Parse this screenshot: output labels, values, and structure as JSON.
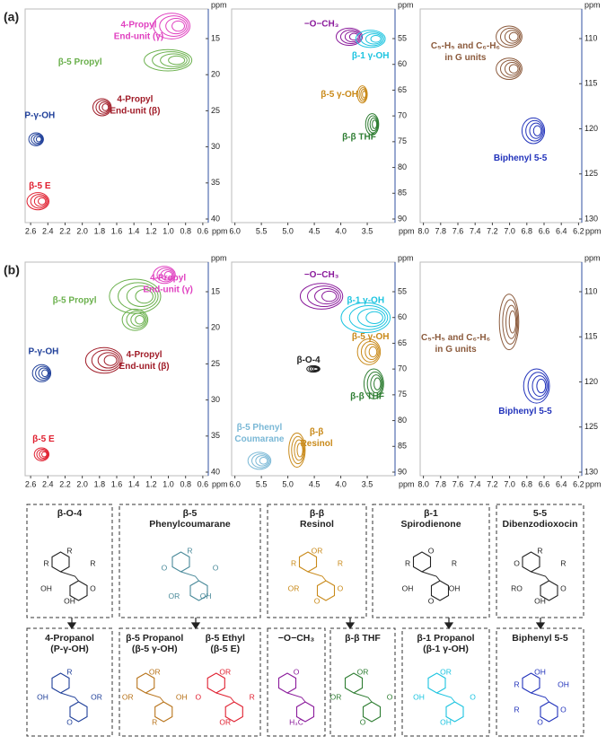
{
  "rows": [
    {
      "tag": "(a)",
      "spectra": [
        {
          "xticks": [
            "2.6",
            "2.4",
            "2.2",
            "2.0",
            "1.8",
            "1.6",
            "1.4",
            "1.2",
            "1.0",
            "0.8",
            "0.6"
          ],
          "yticks": [
            "15",
            "20",
            "25",
            "30",
            "35",
            "40"
          ],
          "xunit": "ppm",
          "yunit": "ppm",
          "labels": [
            [
              "4-Propyl",
              "End-unit (γ)"
            ],
            [
              "β-5 Propyl"
            ],
            [
              "4-Propyl",
              "End-unit (β)"
            ],
            [
              "P-γ-OH"
            ],
            [
              "β-5 E"
            ]
          ]
        },
        {
          "xticks": [
            "6.0",
            "5.5",
            "5.0",
            "4.5",
            "4.0",
            "3.5"
          ],
          "yticks": [
            "55",
            "60",
            "65",
            "70",
            "75",
            "80",
            "85",
            "90"
          ],
          "xunit": "ppm",
          "yunit": "ppm",
          "labels": [
            [
              "−O−CH₃"
            ],
            [
              "β-1 γ-OH"
            ],
            [
              "β-5 γ-OH"
            ],
            [
              "β-β THF"
            ]
          ]
        },
        {
          "xticks": [
            "8.0",
            "7.8",
            "7.6",
            "7.4",
            "7.2",
            "7.0",
            "6.8",
            "6.6",
            "6.4",
            "6.2"
          ],
          "yticks": [
            "110",
            "115",
            "120",
            "125",
            "130"
          ],
          "xunit": "ppm",
          "yunit": "ppm",
          "labels": [
            [
              "C₅-H₅ and C₆-H₆",
              "in G units"
            ],
            [
              "Biphenyl 5-5"
            ]
          ]
        }
      ]
    },
    {
      "tag": "(b)",
      "spectra": [
        {
          "xticks": [
            "2.6",
            "2.4",
            "2.2",
            "2.0",
            "1.8",
            "1.6",
            "1.4",
            "1.2",
            "1.0",
            "0.8",
            "0.6"
          ],
          "yticks": [
            "15",
            "20",
            "25",
            "30",
            "35",
            "40"
          ],
          "xunit": "ppm",
          "yunit": "ppm",
          "labels": [
            [
              "4-Propyl",
              "End-unit (γ)"
            ],
            [
              "β-5 Propyl"
            ],
            [
              "4-Propyl",
              "End-unit (β)"
            ],
            [
              "P-γ-OH"
            ],
            [
              "β-5 E"
            ]
          ]
        },
        {
          "xticks": [
            "6.0",
            "5.5",
            "5.0",
            "4.5",
            "4.0",
            "3.5"
          ],
          "yticks": [
            "55",
            "60",
            "65",
            "70",
            "75",
            "80",
            "85",
            "90"
          ],
          "xunit": "ppm",
          "yunit": "ppm",
          "labels": [
            [
              "−O−CH₃"
            ],
            [
              "β-1 γ-OH"
            ],
            [
              "β-5 γ-OH"
            ],
            [
              "β-O-4"
            ],
            [
              "β-β THF"
            ],
            [
              "β-5 Phenyl",
              "Coumarane"
            ],
            [
              "β-β",
              "Resinol"
            ]
          ]
        },
        {
          "xticks": [
            "8.0",
            "7.8",
            "7.6",
            "7.4",
            "7.2",
            "7.0",
            "6.8",
            "6.6",
            "6.4",
            "6.2"
          ],
          "yticks": [
            "110",
            "115",
            "120",
            "125",
            "130"
          ],
          "xunit": "ppm",
          "yunit": "ppm",
          "labels": [
            [
              "C₅-H₅ and C₆-H₆",
              "in G units"
            ],
            [
              "Biphenyl 5-5"
            ]
          ]
        }
      ]
    }
  ],
  "linkages": [
    {
      "lines": [
        "β-O-4"
      ],
      "atoms": [
        "R",
        "R",
        "O",
        "OH",
        "OH",
        "R"
      ]
    },
    {
      "lines": [
        "β-5",
        "Phenylcoumarane"
      ],
      "atoms": [
        "R",
        "O",
        "OH",
        "OR",
        "O"
      ]
    },
    {
      "lines": [
        "β-β",
        "Resinol"
      ],
      "atoms": [
        "OR",
        "R",
        "O",
        "O",
        "OR",
        "R"
      ]
    },
    {
      "lines": [
        "β-1",
        "Spirodienone"
      ],
      "atoms": [
        "O",
        "R",
        "OH",
        "O",
        "OH",
        "R"
      ]
    },
    {
      "lines": [
        "5-5",
        "Dibenzodioxocin"
      ],
      "atoms": [
        "R",
        "R",
        "O",
        "OH",
        "RO",
        "O"
      ]
    }
  ],
  "products": [
    {
      "items": [
        {
          "lines": [
            "4-Propanol",
            "(P-γ-OH)"
          ],
          "atoms": [
            "R",
            "OR",
            "O",
            "OH"
          ]
        }
      ]
    },
    {
      "items": [
        {
          "lines": [
            "β-5 Propanol",
            "(β-5 γ-OH)"
          ],
          "atoms": [
            "OR",
            "OH",
            "R",
            "OR"
          ]
        },
        {
          "lines": [
            "β-5 Ethyl",
            "(β-5 E)"
          ],
          "atoms": [
            "OR",
            "R",
            "OR",
            "O"
          ]
        }
      ]
    },
    {
      "items": [
        {
          "lines": [
            "−O−CH₃"
          ],
          "atoms": [
            "O",
            "H₃C"
          ]
        }
      ]
    },
    {
      "items": [
        {
          "lines": [
            "β-β THF"
          ],
          "atoms": [
            "OR",
            "O",
            "O",
            "OR"
          ]
        }
      ]
    },
    {
      "items": [
        {
          "lines": [
            "β-1 Propanol",
            "(β-1 γ-OH)"
          ],
          "atoms": [
            "OR",
            "O",
            "OH",
            "OH"
          ]
        }
      ]
    },
    {
      "items": [
        {
          "lines": [
            "Biphenyl 5-5"
          ],
          "atoms": [
            "OH",
            "OH",
            "O",
            "O",
            "R",
            "R"
          ]
        }
      ]
    }
  ]
}
